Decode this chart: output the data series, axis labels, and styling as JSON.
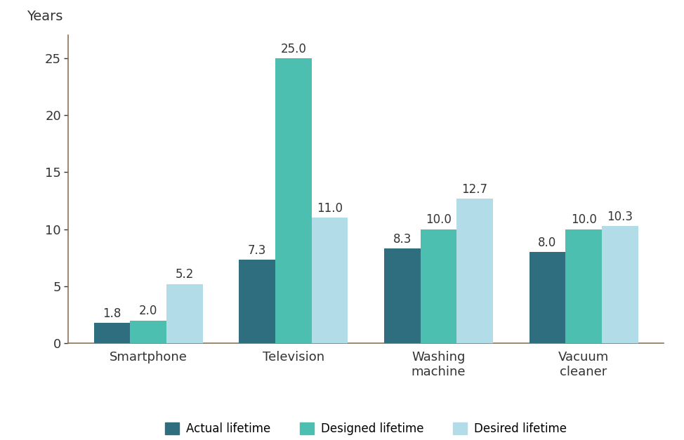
{
  "categories": [
    "Smartphone",
    "Television",
    "Washing\nmachine",
    "Vacuum\ncleaner"
  ],
  "actual_lifetime": [
    1.8,
    7.3,
    8.3,
    8.0
  ],
  "designed_lifetime": [
    2.0,
    25.0,
    10.0,
    10.0
  ],
  "desired_lifetime": [
    5.2,
    11.0,
    12.7,
    10.3
  ],
  "color_actual": "#2e6e7e",
  "color_designed": "#4dbfb0",
  "color_desired": "#b2dde8",
  "spine_color": "#8b7355",
  "ylabel": "Years",
  "ylim": [
    0,
    27
  ],
  "yticks": [
    0,
    5,
    10,
    15,
    20,
    25
  ],
  "legend_labels": [
    "Actual lifetime",
    "Designed lifetime",
    "Desired lifetime"
  ],
  "bar_width": 0.25,
  "label_fontsize": 13,
  "tick_fontsize": 13,
  "ylabel_fontsize": 14,
  "legend_fontsize": 12,
  "value_fontsize": 12,
  "background_color": "#ffffff",
  "text_color": "#333333"
}
